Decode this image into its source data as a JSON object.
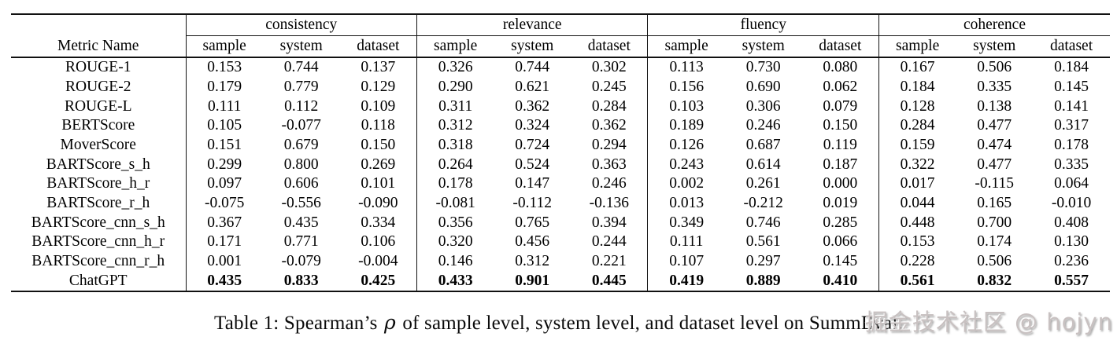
{
  "table": {
    "metric_header": "Metric Name",
    "groups": [
      "consistency",
      "relevance",
      "fluency",
      "coherence"
    ],
    "sub_headers": [
      "sample",
      "system",
      "dataset"
    ],
    "rows": [
      {
        "metric": "ROUGE-1",
        "bold": false,
        "values": [
          "0.153",
          "0.744",
          "0.137",
          "0.326",
          "0.744",
          "0.302",
          "0.113",
          "0.730",
          "0.080",
          "0.167",
          "0.506",
          "0.184"
        ]
      },
      {
        "metric": "ROUGE-2",
        "bold": false,
        "values": [
          "0.179",
          "0.779",
          "0.129",
          "0.290",
          "0.621",
          "0.245",
          "0.156",
          "0.690",
          "0.062",
          "0.184",
          "0.335",
          "0.145"
        ]
      },
      {
        "metric": "ROUGE-L",
        "bold": false,
        "values": [
          "0.111",
          "0.112",
          "0.109",
          "0.311",
          "0.362",
          "0.284",
          "0.103",
          "0.306",
          "0.079",
          "0.128",
          "0.138",
          "0.141"
        ]
      },
      {
        "metric": "BERTScore",
        "bold": false,
        "values": [
          "0.105",
          "-0.077",
          "0.118",
          "0.312",
          "0.324",
          "0.362",
          "0.189",
          "0.246",
          "0.150",
          "0.284",
          "0.477",
          "0.317"
        ]
      },
      {
        "metric": "MoverScore",
        "bold": false,
        "values": [
          "0.151",
          "0.679",
          "0.150",
          "0.318",
          "0.724",
          "0.294",
          "0.126",
          "0.687",
          "0.119",
          "0.159",
          "0.474",
          "0.178"
        ]
      },
      {
        "metric": "BARTScore_s_h",
        "bold": false,
        "values": [
          "0.299",
          "0.800",
          "0.269",
          "0.264",
          "0.524",
          "0.363",
          "0.243",
          "0.614",
          "0.187",
          "0.322",
          "0.477",
          "0.335"
        ]
      },
      {
        "metric": "BARTScore_h_r",
        "bold": false,
        "values": [
          "0.097",
          "0.606",
          "0.101",
          "0.178",
          "0.147",
          "0.246",
          "0.002",
          "0.261",
          "0.000",
          "0.017",
          "-0.115",
          "0.064"
        ]
      },
      {
        "metric": "BARTScore_r_h",
        "bold": false,
        "values": [
          "-0.075",
          "-0.556",
          "-0.090",
          "-0.081",
          "-0.112",
          "-0.136",
          "0.013",
          "-0.212",
          "0.019",
          "0.044",
          "0.165",
          "-0.010"
        ]
      },
      {
        "metric": "BARTScore_cnn_s_h",
        "bold": false,
        "values": [
          "0.367",
          "0.435",
          "0.334",
          "0.356",
          "0.765",
          "0.394",
          "0.349",
          "0.746",
          "0.285",
          "0.448",
          "0.700",
          "0.408"
        ]
      },
      {
        "metric": "BARTScore_cnn_h_r",
        "bold": false,
        "values": [
          "0.171",
          "0.771",
          "0.106",
          "0.320",
          "0.456",
          "0.244",
          "0.111",
          "0.561",
          "0.066",
          "0.153",
          "0.174",
          "0.130"
        ]
      },
      {
        "metric": "BARTScore_cnn_r_h",
        "bold": false,
        "values": [
          "0.001",
          "-0.079",
          "-0.004",
          "0.146",
          "0.312",
          "0.221",
          "0.107",
          "0.297",
          "0.145",
          "0.228",
          "0.506",
          "0.236"
        ]
      },
      {
        "metric": "ChatGPT",
        "bold": true,
        "values": [
          "0.435",
          "0.833",
          "0.425",
          "0.433",
          "0.901",
          "0.445",
          "0.419",
          "0.889",
          "0.410",
          "0.561",
          "0.832",
          "0.557"
        ]
      }
    ]
  },
  "caption": {
    "prefix": "Table 1: Spearman’s ",
    "rho": "ρ",
    "suffix": " of sample level, system level, and dataset level on SummEval."
  },
  "watermark": {
    "text": "掘金技术社区 @ hojyn"
  }
}
